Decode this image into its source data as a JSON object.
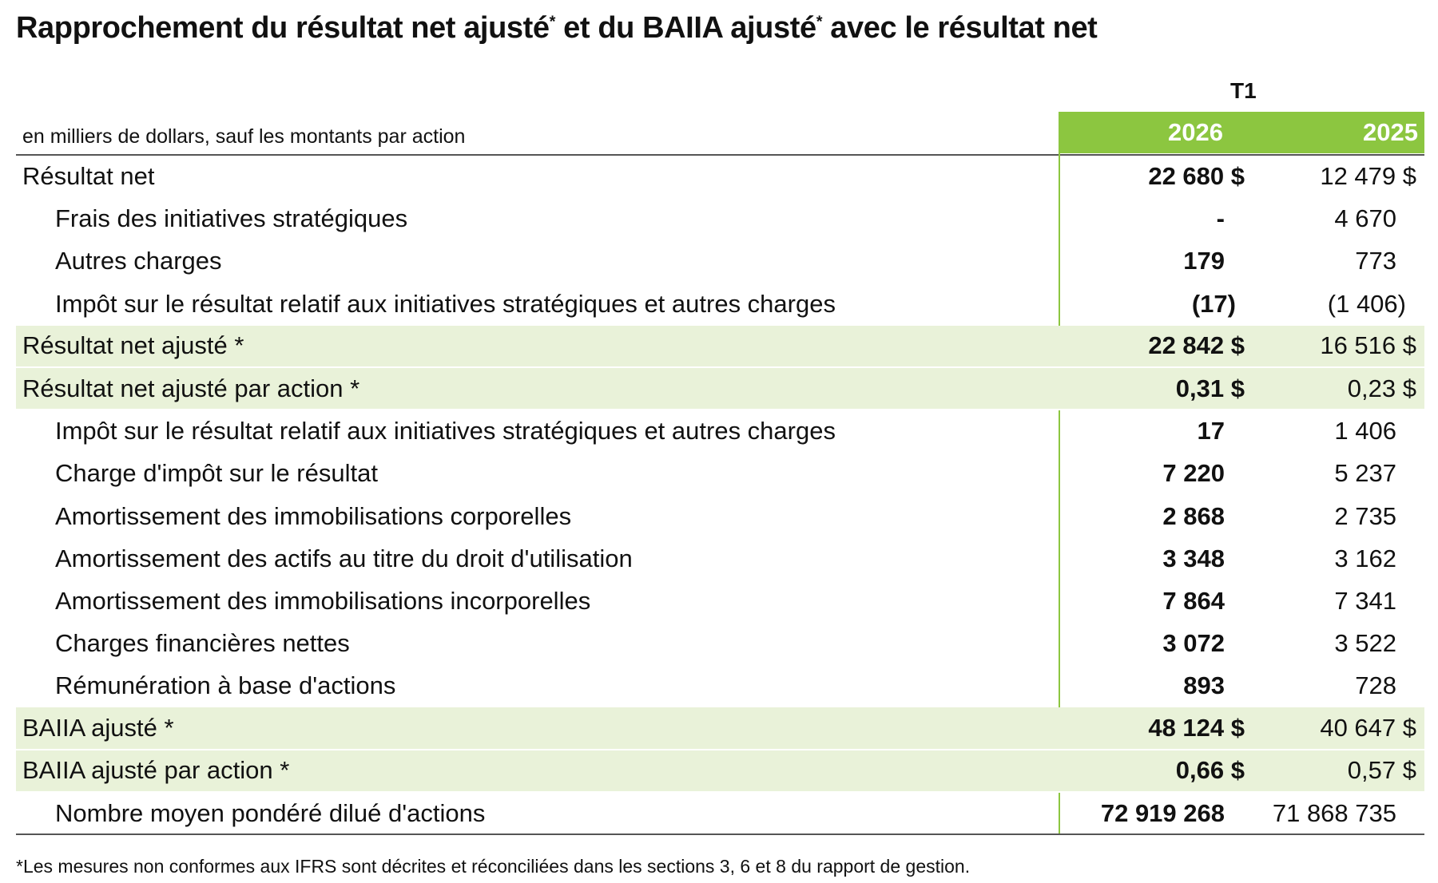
{
  "title": {
    "part1": "Rapprochement du résultat net ajusté",
    "mark1": "*",
    "part2": " et du BAIIA ajusté",
    "mark2": "*",
    "part3": " avec le résultat net"
  },
  "period_label": "T1",
  "units_note": "en milliers de dollars, sauf les montants par action",
  "columns": [
    "2026",
    "2025"
  ],
  "rows": [
    {
      "label": "Résultat net",
      "v2026": "22 680 $",
      "v2025": "12 479 $",
      "indent": 0,
      "shaded": false,
      "fmt": "cur"
    },
    {
      "label": "Frais des initiatives stratégiques",
      "v2026": "-",
      "v2025": "4 670",
      "indent": 1,
      "shaded": false,
      "fmt": "ncur"
    },
    {
      "label": "Autres charges",
      "v2026": "179",
      "v2025": "773",
      "indent": 1,
      "shaded": false,
      "fmt": "ncur"
    },
    {
      "label": "Impôt sur le résultat relatif aux initiatives stratégiques et autres charges",
      "v2026": "(17)",
      "v2025": "(1 406)",
      "indent": 1,
      "shaded": false,
      "fmt": "paren"
    },
    {
      "label": "Résultat net ajusté *",
      "v2026": "22 842 $",
      "v2025": "16 516 $",
      "indent": 0,
      "shaded": true,
      "fmt": "cur"
    },
    {
      "label": "Résultat net ajusté par action *",
      "v2026": "0,31 $",
      "v2025": "0,23 $",
      "indent": 0,
      "shaded": true,
      "fmt": "cur"
    },
    {
      "label": "Impôt sur le résultat relatif aux initiatives stratégiques et autres charges",
      "v2026": "17",
      "v2025": "1 406",
      "indent": 1,
      "shaded": false,
      "fmt": "ncur"
    },
    {
      "label": "Charge d'impôt sur le résultat",
      "v2026": "7 220",
      "v2025": "5 237",
      "indent": 1,
      "shaded": false,
      "fmt": "ncur"
    },
    {
      "label": "Amortissement des immobilisations corporelles",
      "v2026": "2 868",
      "v2025": "2 735",
      "indent": 1,
      "shaded": false,
      "fmt": "ncur"
    },
    {
      "label": "Amortissement des actifs au titre du droit d'utilisation",
      "v2026": "3 348",
      "v2025": "3 162",
      "indent": 1,
      "shaded": false,
      "fmt": "ncur"
    },
    {
      "label": "Amortissement des immobilisations incorporelles",
      "v2026": "7 864",
      "v2025": "7 341",
      "indent": 1,
      "shaded": false,
      "fmt": "ncur"
    },
    {
      "label": "Charges financières nettes",
      "v2026": "3 072",
      "v2025": "3 522",
      "indent": 1,
      "shaded": false,
      "fmt": "ncur"
    },
    {
      "label": "Rémunération à base d'actions",
      "v2026": "893",
      "v2025": "728",
      "indent": 1,
      "shaded": false,
      "fmt": "ncur"
    },
    {
      "label": "BAIIA ajusté *",
      "v2026": "48 124 $",
      "v2025": "40 647 $",
      "indent": 0,
      "shaded": true,
      "fmt": "cur"
    },
    {
      "label": "BAIIA ajusté par action *",
      "v2026": "0,66 $",
      "v2025": "0,57 $",
      "indent": 0,
      "shaded": true,
      "fmt": "cur"
    },
    {
      "label": "Nombre moyen pondéré dilué d'actions",
      "v2026": "72 919 268",
      "v2025": "71 868 735",
      "indent": 1,
      "shaded": false,
      "fmt": "ncur"
    }
  ],
  "footnote": "*Les mesures non conformes aux IFRS sont décrites et réconciliées dans les sections 3, 6 et 8 du rapport de gestion.",
  "colors": {
    "header_green": "#8cc640",
    "shade_green": "#e9f2d9",
    "text": "#111111"
  }
}
